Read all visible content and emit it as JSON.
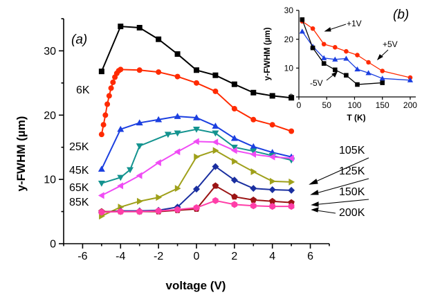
{
  "chart_data": [
    {
      "panel": "(a)",
      "type": "line",
      "xlabel": "voltage (V)",
      "ylabel": "y-FWHM (µm)",
      "xlim": [
        -7,
        7
      ],
      "ylim": [
        0,
        35
      ],
      "xticks": [
        -6,
        -4,
        -2,
        0,
        2,
        4,
        6
      ],
      "yticks": [
        0,
        10,
        20,
        30
      ],
      "grid": false,
      "series": [
        {
          "name": "6K",
          "color": "#000000",
          "marker": "square",
          "x": [
            -5,
            -4,
            -3,
            -2,
            -1,
            0,
            1,
            2,
            3,
            4,
            5
          ],
          "y": [
            26.8,
            33.8,
            33.6,
            31.8,
            29.5,
            27.0,
            26.2,
            24.8,
            23.5,
            23.0,
            22.7
          ]
        },
        {
          "name": "25K",
          "color": "#ff2a00",
          "marker": "circle",
          "x": [
            -5,
            -4.9,
            -4.8,
            -4.7,
            -4.6,
            -4.5,
            -4.4,
            -4.3,
            -4.2,
            -4.1,
            -4,
            -3,
            -2,
            -1,
            0,
            1,
            2,
            3,
            4,
            5
          ],
          "y": [
            17.0,
            18.5,
            20.0,
            21.7,
            23.0,
            24.2,
            25.1,
            25.9,
            26.5,
            26.9,
            27.1,
            27.0,
            26.7,
            26.0,
            25.0,
            23.7,
            21.0,
            19.3,
            18.5,
            17.5
          ]
        },
        {
          "name": "",
          "color": "#1b3fe0",
          "marker": "triangle-up",
          "x": [
            -5,
            -4,
            -3,
            -2,
            -1,
            0,
            1,
            2,
            3,
            4,
            5
          ],
          "y": [
            11.6,
            17.8,
            18.8,
            19.3,
            19.8,
            19.6,
            18.3,
            16.4,
            15.1,
            14.2,
            13.5
          ]
        },
        {
          "name": "45K",
          "color": "#13938f",
          "marker": "triangle-down",
          "x": [
            -5,
            -4,
            -3.5,
            -3,
            -1.5,
            -1,
            0,
            1,
            2,
            3,
            4,
            5
          ],
          "y": [
            9.4,
            10.3,
            11.5,
            15.2,
            17.0,
            17.2,
            17.8,
            17.2,
            15.0,
            14.4,
            13.7,
            13.0
          ]
        },
        {
          "name": "65K",
          "color": "#f04cf5",
          "marker": "triangle-left",
          "x": [
            -5,
            -4,
            -3,
            -2,
            -1,
            0,
            1,
            2,
            3,
            4,
            5
          ],
          "y": [
            7.5,
            9.0,
            10.6,
            12.6,
            14.3,
            15.9,
            15.8,
            14.5,
            13.9,
            13.5,
            13.3
          ]
        },
        {
          "name": "85K",
          "color": "#9fa01a",
          "marker": "triangle-right",
          "x": [
            -5,
            -4,
            -3,
            -2,
            -1,
            0,
            1,
            2,
            3,
            4,
            5
          ],
          "y": [
            4.3,
            5.7,
            6.6,
            7.2,
            8.6,
            13.5,
            14.5,
            12.8,
            11.2,
            9.7,
            9.6
          ]
        },
        {
          "name": "105K",
          "color": "#1a2fa0",
          "marker": "diamond",
          "x": [
            -5,
            -4,
            -3,
            -2,
            -1,
            0,
            1,
            2,
            3,
            4,
            5
          ],
          "y": [
            4.9,
            5.1,
            5.1,
            5.2,
            5.7,
            8.5,
            12.0,
            9.9,
            8.6,
            8.4,
            8.3
          ]
        },
        {
          "name": "125K",
          "color": "#9b1414",
          "marker": "pentagon",
          "x": [
            -5,
            -4,
            -3,
            -2,
            -1,
            0,
            1,
            2,
            3,
            4,
            5
          ],
          "y": [
            5.0,
            5.0,
            5.0,
            5.0,
            5.2,
            5.4,
            9.0,
            7.3,
            6.8,
            6.6,
            6.4
          ]
        },
        {
          "name": "150K",
          "color": "#ff3ea8",
          "marker": "hexagon",
          "x": [
            -5,
            -4,
            -3,
            -2,
            -1,
            0,
            1,
            2,
            3,
            4,
            5
          ],
          "y": [
            4.9,
            5.0,
            5.0,
            5.1,
            5.3,
            5.6,
            6.7,
            6.1,
            5.9,
            5.8,
            5.8
          ]
        }
      ],
      "labels": {
        "6K": "6K",
        "25K": "25K",
        "45K": "45K",
        "65K": "65K",
        "85K": "85K",
        "105K": "105K",
        "125K": "125K",
        "150K": "150K",
        "200K": "200K"
      }
    },
    {
      "panel": "(b)",
      "type": "line",
      "xlabel": "T (K)",
      "ylabel": "y-FWHM (µm)",
      "xlim": [
        0,
        210
      ],
      "ylim": [
        0,
        30
      ],
      "xticks": [
        0,
        50,
        100,
        150,
        200
      ],
      "yticks": [
        0,
        10,
        20,
        30
      ],
      "grid": false,
      "series": [
        {
          "name": "+1V",
          "color": "#ff2a00",
          "marker": "circle",
          "x": [
            6,
            25,
            45,
            65,
            85,
            105,
            125,
            150,
            200
          ],
          "y": [
            26.2,
            23.7,
            18.3,
            17.2,
            15.8,
            14.5,
            12.0,
            9.0,
            6.7
          ]
        },
        {
          "name": "+5V",
          "color": "#1b3fe0",
          "marker": "triangle-up",
          "x": [
            6,
            25,
            45,
            65,
            85,
            105,
            125,
            150,
            200
          ],
          "y": [
            22.7,
            17.5,
            13.5,
            13.0,
            13.3,
            9.6,
            8.3,
            6.4,
            5.8
          ]
        },
        {
          "name": "-5V",
          "color": "#000000",
          "marker": "square",
          "x": [
            6,
            25,
            45,
            65,
            85,
            105,
            150
          ],
          "y": [
            26.8,
            17.0,
            11.6,
            9.4,
            7.5,
            4.3,
            4.9
          ]
        }
      ]
    }
  ]
}
